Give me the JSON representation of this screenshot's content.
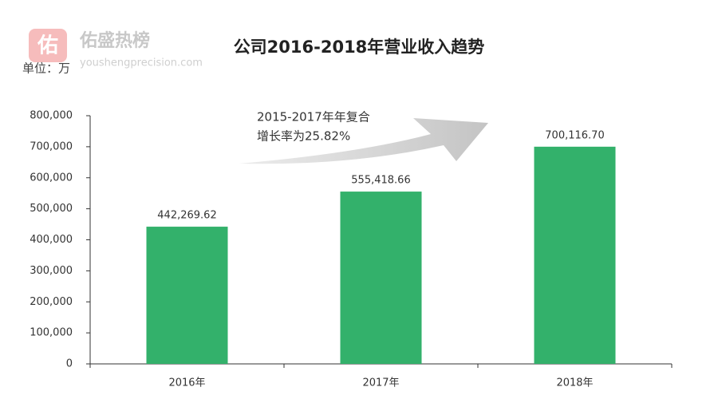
{
  "chart_data": {
    "type": "bar",
    "title": "公司2016-2018年营业收入趋势",
    "unit_label": "单位：万",
    "watermark": {
      "logo": "佑",
      "name": "佑盛热榜",
      "url": "youshengprecision.com"
    },
    "annotation": [
      "2015-2017年年复合",
      "增长率为25.82%"
    ],
    "categories": [
      "2016年",
      "2017年",
      "2018年"
    ],
    "values": [
      442269.62,
      555418.66,
      700116.7
    ],
    "value_labels": [
      "442,269.62",
      "555,418.66",
      "700,116.70"
    ],
    "color": "#33b16b",
    "ylim": [
      0,
      800000
    ],
    "yticks": [
      0,
      {
        "value": 100000,
        "label": "100,000"
      },
      {
        "value": 200000,
        "label": "200,000"
      },
      {
        "value": 300000,
        "label": "300,000"
      },
      {
        "value": 400000,
        "label": "400,000"
      },
      {
        "value": 500000,
        "label": "500,000"
      },
      {
        "value": 600000,
        "label": "600,000"
      },
      {
        "value": 700000,
        "label": "700,000"
      },
      {
        "value": 800000,
        "label": "800,000"
      }
    ],
    "grid": false
  }
}
